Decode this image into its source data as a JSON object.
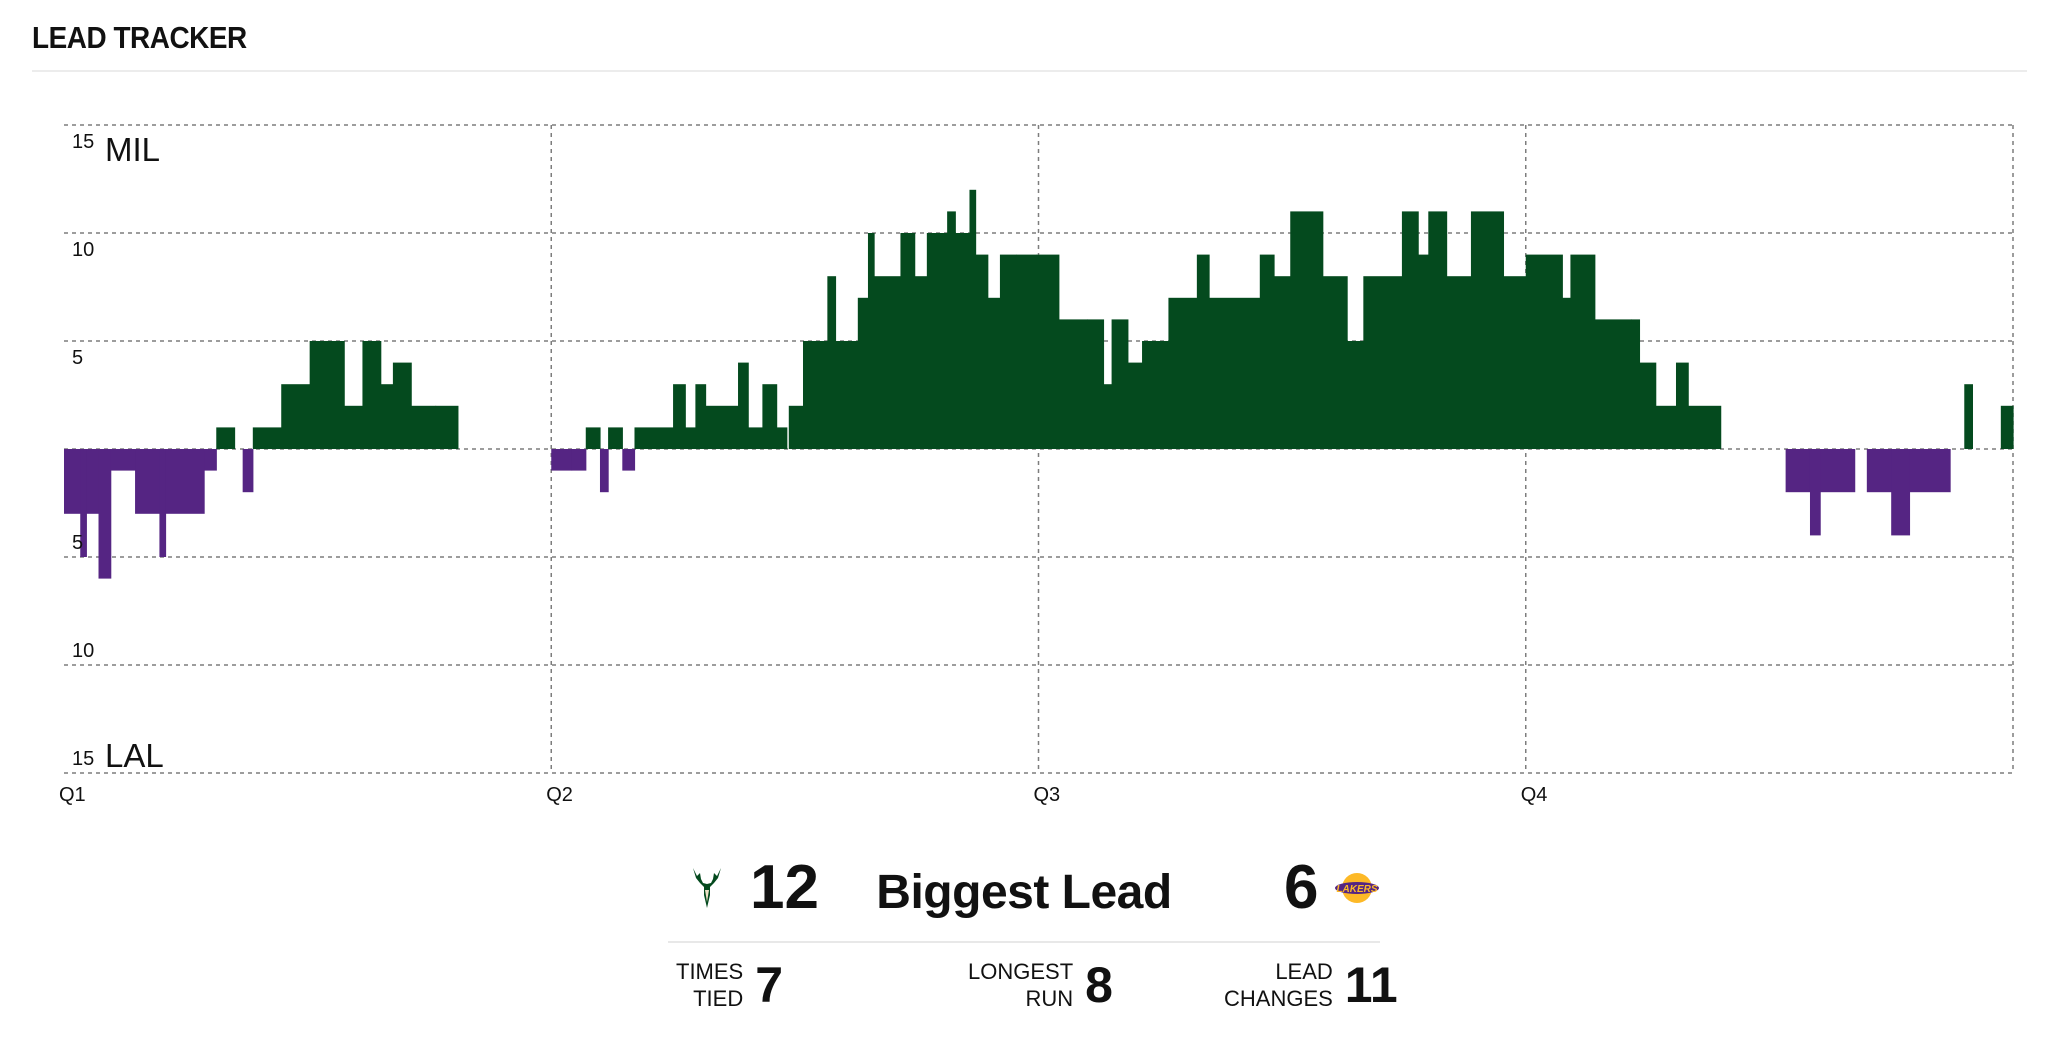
{
  "header": {
    "title": "LEAD TRACKER"
  },
  "chart_data": {
    "type": "bar",
    "description_axis": "lead",
    "ylim": [
      -15,
      15
    ],
    "y_ticks_top": [
      "15",
      "10",
      "5"
    ],
    "y_ticks_bottom": [
      "5",
      "10",
      "15"
    ],
    "top_team_label": "MIL",
    "bottom_team_label": "LAL",
    "x_labels": [
      "Q1",
      "Q2",
      "Q3",
      "Q4"
    ],
    "colors": {
      "home": "#044a1e",
      "away": "#552583",
      "grid": "#7d7d7d"
    },
    "x_range": [
      0,
      48
    ],
    "segments": [
      [
        0.0,
        0.4,
        -3
      ],
      [
        0.4,
        0.55,
        -5
      ],
      [
        0.55,
        0.85,
        -3
      ],
      [
        0.85,
        1.15,
        -6
      ],
      [
        1.15,
        1.75,
        -1
      ],
      [
        1.75,
        2.35,
        -3
      ],
      [
        2.35,
        2.5,
        -5
      ],
      [
        2.5,
        3.45,
        -3
      ],
      [
        3.45,
        3.75,
        -1
      ],
      [
        3.75,
        4.2,
        1
      ],
      [
        4.2,
        4.4,
        0
      ],
      [
        4.4,
        4.65,
        -2
      ],
      [
        4.65,
        5.35,
        1
      ],
      [
        5.35,
        6.05,
        3
      ],
      [
        6.05,
        6.9,
        5
      ],
      [
        6.9,
        7.35,
        2
      ],
      [
        7.35,
        7.8,
        5
      ],
      [
        7.8,
        8.1,
        3
      ],
      [
        8.1,
        8.55,
        4
      ],
      [
        8.55,
        9.15,
        2
      ],
      [
        9.15,
        9.7,
        2
      ],
      [
        12.0,
        12.5,
        -1
      ],
      [
        12.5,
        12.85,
        -1
      ],
      [
        12.85,
        13.2,
        1
      ],
      [
        13.2,
        13.4,
        -2
      ],
      [
        13.4,
        13.75,
        1
      ],
      [
        13.75,
        14.05,
        -1
      ],
      [
        14.05,
        15.0,
        1
      ],
      [
        15.0,
        15.3,
        3
      ],
      [
        15.3,
        15.55,
        1
      ],
      [
        15.55,
        15.8,
        3
      ],
      [
        15.8,
        16.6,
        2
      ],
      [
        16.6,
        16.85,
        4
      ],
      [
        16.85,
        17.2,
        1
      ],
      [
        17.2,
        17.55,
        3
      ],
      [
        17.55,
        17.8,
        1
      ],
      [
        17.85,
        18.2,
        2
      ],
      [
        18.2,
        18.8,
        5
      ],
      [
        18.8,
        19.0,
        8
      ],
      [
        19.0,
        19.55,
        5
      ],
      [
        19.55,
        19.8,
        7
      ],
      [
        19.8,
        19.95,
        10
      ],
      [
        19.95,
        20.6,
        8
      ],
      [
        20.6,
        20.95,
        10
      ],
      [
        20.95,
        21.25,
        8
      ],
      [
        21.25,
        21.75,
        10
      ],
      [
        21.75,
        21.95,
        11
      ],
      [
        21.95,
        22.3,
        10
      ],
      [
        22.3,
        22.45,
        12
      ],
      [
        22.45,
        22.75,
        9
      ],
      [
        22.75,
        23.05,
        7
      ],
      [
        23.05,
        23.45,
        9
      ],
      [
        23.45,
        23.95,
        9
      ],
      [
        23.95,
        24.5,
        9
      ],
      [
        24.5,
        25.2,
        6
      ],
      [
        25.2,
        25.6,
        6
      ],
      [
        25.6,
        25.8,
        3
      ],
      [
        25.8,
        26.2,
        6
      ],
      [
        26.2,
        26.55,
        4
      ],
      [
        26.55,
        27.2,
        5
      ],
      [
        27.2,
        27.9,
        7
      ],
      [
        27.9,
        28.2,
        9
      ],
      [
        28.2,
        29.45,
        7
      ],
      [
        29.45,
        29.8,
        9
      ],
      [
        29.8,
        30.2,
        8
      ],
      [
        30.2,
        31.0,
        11
      ],
      [
        31.0,
        31.6,
        8
      ],
      [
        31.6,
        32.0,
        5
      ],
      [
        32.0,
        32.95,
        8
      ],
      [
        32.95,
        33.35,
        11
      ],
      [
        33.35,
        33.6,
        9
      ],
      [
        33.6,
        34.05,
        11
      ],
      [
        34.05,
        34.65,
        8
      ],
      [
        34.65,
        35.45,
        11
      ],
      [
        35.45,
        36.0,
        8
      ],
      [
        36.0,
        36.9,
        9
      ],
      [
        36.9,
        37.1,
        7
      ],
      [
        37.1,
        37.7,
        9
      ],
      [
        37.7,
        38.6,
        6
      ],
      [
        38.6,
        38.8,
        6
      ],
      [
        38.8,
        39.2,
        4
      ],
      [
        39.2,
        39.7,
        2
      ],
      [
        39.7,
        40.0,
        4
      ],
      [
        40.0,
        40.8,
        2
      ],
      [
        42.4,
        43.0,
        -2
      ],
      [
        43.0,
        43.25,
        -4
      ],
      [
        43.25,
        44.1,
        -2
      ],
      [
        44.4,
        45.0,
        -2
      ],
      [
        45.0,
        45.45,
        -4
      ],
      [
        45.45,
        46.45,
        -2
      ],
      [
        46.8,
        47.0,
        3
      ],
      [
        47.7,
        48.0,
        2
      ]
    ]
  },
  "summary": {
    "home_biggest_lead": "12",
    "biggest_lead_label": "Biggest Lead",
    "away_biggest_lead": "6",
    "times_tied_label_1": "TIMES",
    "times_tied_label_2": "TIED",
    "times_tied_value": "7",
    "longest_run_label_1": "LONGEST",
    "longest_run_label_2": "RUN",
    "longest_run_value": "8",
    "lead_changes_label_1": "LEAD",
    "lead_changes_label_2": "CHANGES",
    "lead_changes_value": "11",
    "home_logo_icon": "bucks-deer-icon",
    "away_logo_icon": "lakers-logo-icon",
    "home_color": "#044a1e",
    "away_color": "#552583"
  }
}
